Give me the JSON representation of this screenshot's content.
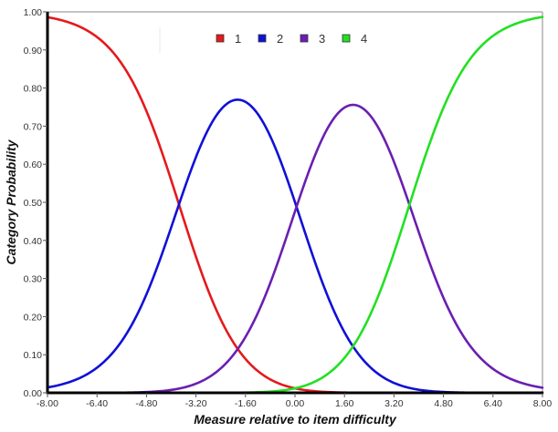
{
  "chart_data": {
    "type": "line",
    "title": "",
    "xlabel": "Measure relative to item difficulty",
    "ylabel": "Category Probability",
    "xlim": [
      -8.0,
      8.0
    ],
    "ylim": [
      0.0,
      1.0
    ],
    "x_ticks": [
      "-8.00",
      "-6.40",
      "-4.80",
      "-3.20",
      "-1.60",
      "0.00",
      "1.60",
      "3.20",
      "4.80",
      "6.40",
      "8.00"
    ],
    "y_ticks": [
      "0.00",
      "0.10",
      "0.20",
      "0.30",
      "0.40",
      "0.50",
      "0.60",
      "0.70",
      "0.80",
      "0.90",
      "1.00"
    ],
    "grid": false,
    "legend_position": "top-center",
    "model": "Rasch rating scale category probability curves",
    "thresholds": [
      -3.75,
      0.05,
      3.7
    ],
    "x": [
      -8.0,
      -6.4,
      -4.8,
      -3.2,
      -1.6,
      0.0,
      1.6,
      3.2,
      4.8,
      6.4,
      8.0
    ],
    "series": [
      {
        "name": "1",
        "color": "#e41a1c",
        "values": [
          0.985,
          0.93,
          0.74,
          0.36,
          0.08,
          0.01,
          0.0,
          0.0,
          0.0,
          0.0,
          0.0
        ]
      },
      {
        "name": "2",
        "color": "#1010d8",
        "values": [
          0.015,
          0.07,
          0.26,
          0.61,
          0.8,
          0.53,
          0.18,
          0.03,
          0.0,
          0.0,
          0.0
        ]
      },
      {
        "name": "3",
        "color": "#6a1fb0",
        "values": [
          0.0,
          0.0,
          0.0,
          0.03,
          0.12,
          0.44,
          0.67,
          0.54,
          0.17,
          0.04,
          0.01
        ]
      },
      {
        "name": "4",
        "color": "#22e022",
        "values": [
          0.0,
          0.0,
          0.0,
          0.0,
          0.0,
          0.02,
          0.15,
          0.43,
          0.83,
          0.96,
          0.99
        ]
      }
    ]
  },
  "legend": {
    "items": [
      {
        "label": "1",
        "color": "#e41a1c"
      },
      {
        "label": "2",
        "color": "#1010d8"
      },
      {
        "label": "3",
        "color": "#6a1fb0"
      },
      {
        "label": "4",
        "color": "#22e022"
      }
    ]
  },
  "axes": {
    "x_title": "Measure relative to item difficulty",
    "y_title": "Category Probability"
  }
}
